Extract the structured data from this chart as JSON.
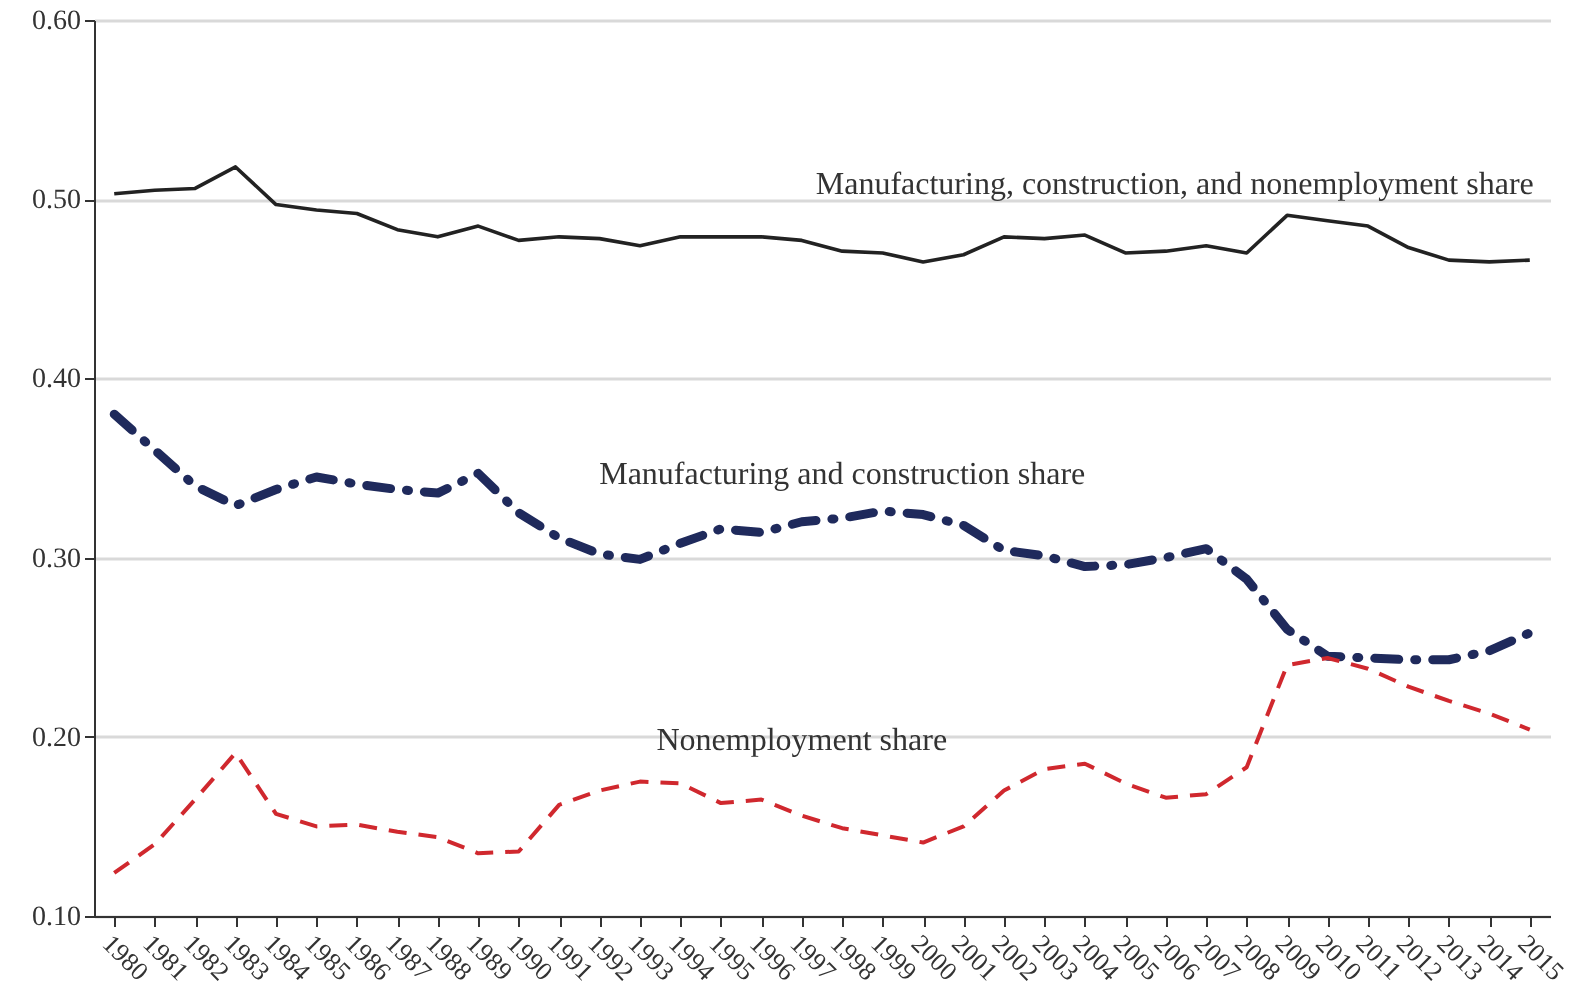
{
  "chart_data": {
    "type": "line",
    "categories": [
      "1980",
      "1981",
      "1982",
      "1983",
      "1984",
      "1985",
      "1986",
      "1987",
      "1988",
      "1989",
      "1990",
      "1991",
      "1992",
      "1993",
      "1994",
      "1995",
      "1996",
      "1997",
      "1998",
      "1999",
      "2000",
      "2001",
      "2002",
      "2003",
      "2004",
      "2005",
      "2006",
      "2007",
      "2008",
      "2009",
      "2010",
      "2011",
      "2012",
      "2013",
      "2014",
      "2015"
    ],
    "ylim": [
      0.1,
      0.6
    ],
    "yticks": [
      {
        "value": 0.1,
        "label": "0.10"
      },
      {
        "value": 0.2,
        "label": "0.20"
      },
      {
        "value": 0.3,
        "label": "0.30"
      },
      {
        "value": 0.4,
        "label": "0.40"
      },
      {
        "value": 0.5,
        "label": "0.50"
      },
      {
        "value": 0.6,
        "label": "0.60"
      }
    ],
    "grid": "y",
    "marker": "none",
    "series": [
      {
        "name": "Manufacturing, construction, and nonemployment share",
        "color": "#222222",
        "line_style": "solid",
        "values": [
          0.503,
          0.505,
          0.506,
          0.518,
          0.497,
          0.494,
          0.492,
          0.483,
          0.479,
          0.485,
          0.477,
          0.479,
          0.478,
          0.474,
          0.479,
          0.479,
          0.479,
          0.477,
          0.471,
          0.47,
          0.465,
          0.469,
          0.479,
          0.478,
          0.48,
          0.47,
          0.471,
          0.474,
          0.47,
          0.491,
          0.488,
          0.485,
          0.473,
          0.466,
          0.465,
          0.466
        ]
      },
      {
        "name": "Manufacturing and construction share",
        "color": "#1f2a5c",
        "line_style": "dashdot",
        "values": [
          0.38,
          0.36,
          0.34,
          0.329,
          0.338,
          0.345,
          0.341,
          0.338,
          0.336,
          0.347,
          0.325,
          0.311,
          0.302,
          0.299,
          0.308,
          0.316,
          0.314,
          0.32,
          0.322,
          0.326,
          0.324,
          0.318,
          0.304,
          0.301,
          0.295,
          0.296,
          0.3,
          0.305,
          0.288,
          0.26,
          0.245,
          0.244,
          0.243,
          0.243,
          0.248,
          0.258
        ]
      },
      {
        "name": "Nonemployment share",
        "color": "#d0282e",
        "line_style": "dashed",
        "values": [
          0.124,
          0.14,
          0.165,
          0.191,
          0.157,
          0.15,
          0.151,
          0.147,
          0.144,
          0.135,
          0.136,
          0.162,
          0.17,
          0.175,
          0.174,
          0.163,
          0.165,
          0.156,
          0.149,
          0.145,
          0.141,
          0.15,
          0.17,
          0.182,
          0.185,
          0.174,
          0.166,
          0.168,
          0.183,
          0.24,
          0.244,
          0.238,
          0.228,
          0.22,
          0.213,
          0.204
        ]
      }
    ]
  }
}
